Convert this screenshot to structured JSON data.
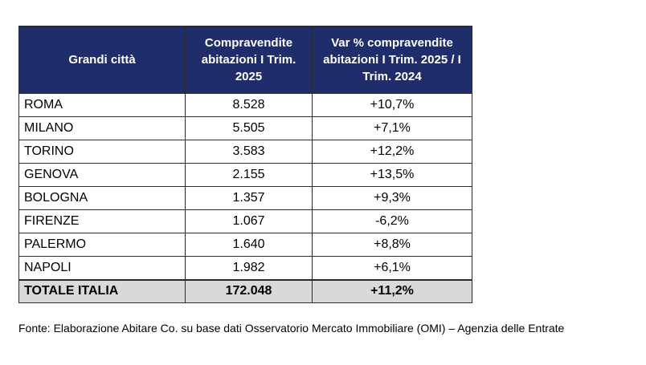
{
  "table": {
    "headers": [
      "Grandi città",
      "Compravendite abitazioni I Trim. 2025",
      "Var % compravendite abitazioni I Trim. 2025 / I Trim. 2024"
    ],
    "rows": [
      {
        "city": "ROMA",
        "sales": "8.528",
        "change": "+10,7%"
      },
      {
        "city": "MILANO",
        "sales": "5.505",
        "change": "+7,1%"
      },
      {
        "city": "TORINO",
        "sales": "3.583",
        "change": "+12,2%"
      },
      {
        "city": "GENOVA",
        "sales": "2.155",
        "change": "+13,5%"
      },
      {
        "city": "BOLOGNA",
        "sales": "1.357",
        "change": "+9,3%"
      },
      {
        "city": "FIRENZE",
        "sales": "1.067",
        "change": "-6,2%"
      },
      {
        "city": "PALERMO",
        "sales": "1.640",
        "change": "+8,8%"
      },
      {
        "city": "NAPOLI",
        "sales": "1.982",
        "change": "+6,1%"
      }
    ],
    "total": {
      "city": "TOTALE ITALIA",
      "sales": "172.048",
      "change": "+11,2%"
    }
  },
  "source": "Fonte: Elaborazione Abitare Co. su base dati Osservatorio Mercato Immobiliare (OMI) – Agenzia delle Entrate",
  "colors": {
    "header_bg": "#1f2e6b",
    "header_text": "#ffffff",
    "total_bg": "#d9d9d9"
  }
}
